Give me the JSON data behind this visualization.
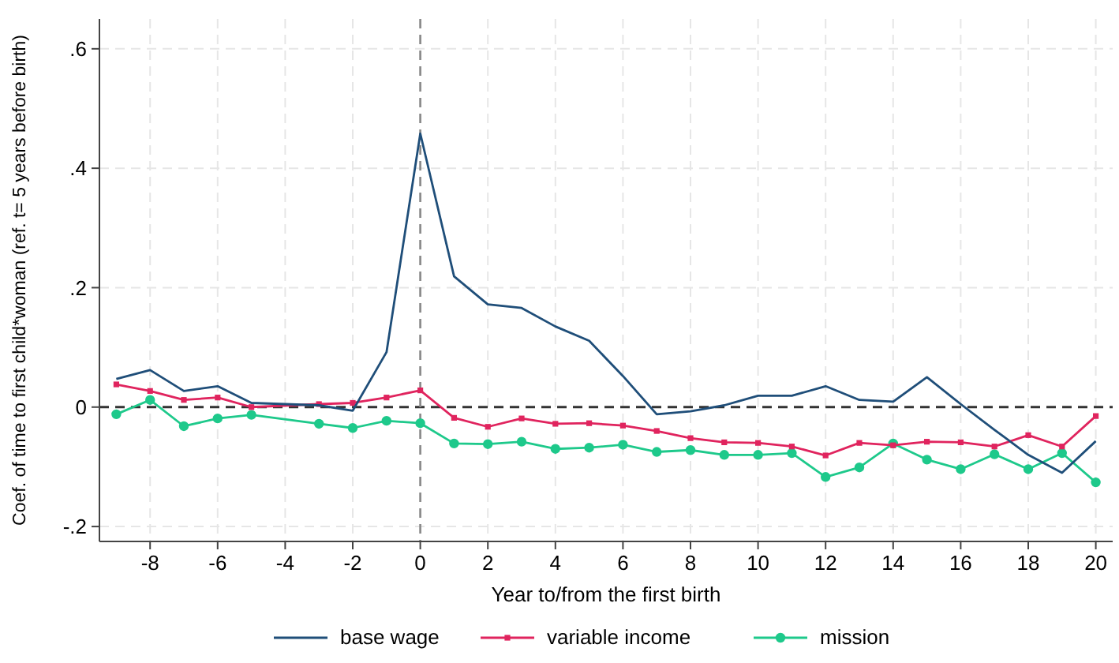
{
  "chart_data": {
    "type": "line",
    "xlabel": "Year to/from the first birth",
    "ylabel": "Coef. of time to first child*woman (ref. t= 5 years before birth)",
    "xlim": [
      -9.5,
      20.5
    ],
    "xticks": [
      -8,
      -6,
      -4,
      -2,
      0,
      2,
      4,
      6,
      8,
      10,
      12,
      14,
      16,
      18,
      20
    ],
    "ylim": [
      -0.225,
      0.65
    ],
    "yticks": [
      {
        "value": -0.2,
        "label": "-.2"
      },
      {
        "value": 0,
        "label": "0"
      },
      {
        "value": 0.2,
        "label": ".2"
      },
      {
        "value": 0.4,
        "label": ".4"
      },
      {
        "value": 0.6,
        "label": ".6"
      }
    ],
    "grid": true,
    "legend": "bottom",
    "line_style": "solid",
    "ref_lines": [
      {
        "axis": "y",
        "value": 0,
        "color": "#333333",
        "line_style": "dashed"
      },
      {
        "axis": "x",
        "value": 0,
        "color": "#888888",
        "line_style": "dashed"
      }
    ],
    "series": [
      {
        "name": "base wage",
        "color": "#1f4e79",
        "marker": "none",
        "x": [
          -9,
          -8,
          -7,
          -6,
          -5,
          -3,
          -2,
          -1,
          0,
          1,
          2,
          3,
          4,
          5,
          6,
          7,
          8,
          9,
          10,
          11,
          12,
          13,
          14,
          15,
          16,
          17,
          18,
          19,
          20
        ],
        "values": [
          0.047,
          0.062,
          0.027,
          0.035,
          0.007,
          0.003,
          -0.006,
          0.092,
          0.458,
          0.219,
          0.172,
          0.166,
          0.135,
          0.111,
          0.052,
          -0.012,
          -0.007,
          0.003,
          0.019,
          0.019,
          0.035,
          0.012,
          0.009,
          0.05,
          0.005,
          -0.038,
          -0.08,
          -0.11,
          -0.057
        ]
      },
      {
        "name": "variable income",
        "color": "#e0245e",
        "marker": "square",
        "x": [
          -9,
          -8,
          -7,
          -6,
          -5,
          -3,
          -2,
          -1,
          0,
          1,
          2,
          3,
          4,
          5,
          6,
          7,
          8,
          9,
          10,
          11,
          12,
          13,
          14,
          15,
          16,
          17,
          18,
          19,
          20
        ],
        "values": [
          0.038,
          0.027,
          0.012,
          0.016,
          0,
          0.005,
          0.007,
          0.016,
          0.028,
          -0.018,
          -0.033,
          -0.019,
          -0.028,
          -0.027,
          -0.031,
          -0.04,
          -0.052,
          -0.059,
          -0.06,
          -0.066,
          -0.081,
          -0.06,
          -0.064,
          -0.058,
          -0.059,
          -0.066,
          -0.047,
          -0.066,
          -0.015
        ]
      },
      {
        "name": "mission",
        "color": "#1ec98b",
        "marker": "circle",
        "x": [
          -9,
          -8,
          -7,
          -6,
          -5,
          -3,
          -2,
          -1,
          0,
          1,
          2,
          3,
          4,
          5,
          6,
          7,
          8,
          9,
          10,
          11,
          12,
          13,
          14,
          15,
          16,
          17,
          18,
          19,
          20
        ],
        "values": [
          -0.012,
          0.012,
          -0.032,
          -0.019,
          -0.013,
          -0.028,
          -0.035,
          -0.023,
          -0.027,
          -0.061,
          -0.062,
          -0.058,
          -0.07,
          -0.068,
          -0.063,
          -0.075,
          -0.072,
          -0.08,
          -0.08,
          -0.077,
          -0.117,
          -0.101,
          -0.061,
          -0.088,
          -0.104,
          -0.079,
          -0.104,
          -0.077,
          -0.126
        ]
      }
    ]
  }
}
